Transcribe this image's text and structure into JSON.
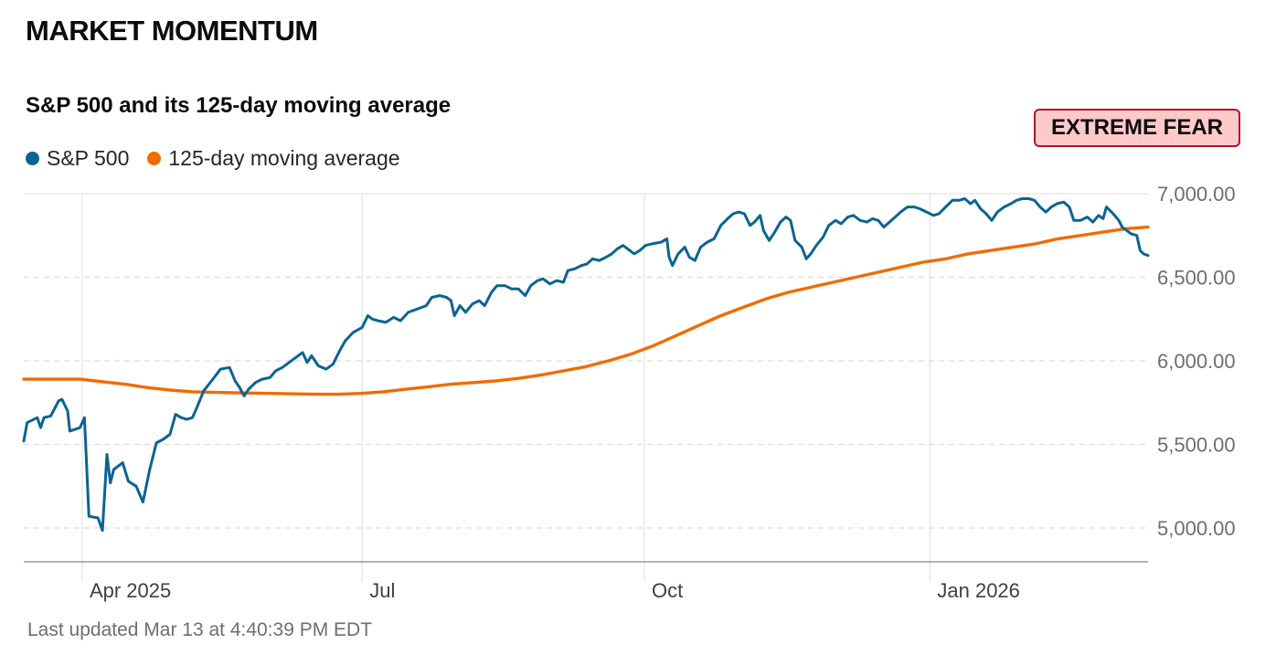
{
  "header": {
    "title": "MARKET MOMENTUM"
  },
  "chart_title": "S&P 500 and its 125-day moving average",
  "badge": {
    "label": "EXTREME FEAR",
    "bg": "#ffc9c9",
    "border": "#b5122a"
  },
  "legend": [
    {
      "label": "S&P 500",
      "color": "#0a6491"
    },
    {
      "label": "125-day moving average",
      "color": "#ef6c00"
    }
  ],
  "footer": {
    "text": "Last updated Mar 13 at 4:40:39 PM EDT"
  },
  "chart_data": {
    "type": "line",
    "title": "S&P 500 and its 125-day moving average",
    "x_range": [
      0,
      100
    ],
    "ylim": [
      4800,
      7000
    ],
    "yticks": [
      {
        "value": 5000,
        "label": "5,000.00"
      },
      {
        "value": 5500,
        "label": "5,500.00"
      },
      {
        "value": 6000,
        "label": "6,000.00"
      },
      {
        "value": 6500,
        "label": "6,500.00"
      },
      {
        "value": 7000,
        "label": "7,000.00"
      }
    ],
    "xticks": [
      {
        "value": 5.2,
        "label": "Apr 2025"
      },
      {
        "value": 30.1,
        "label": "Jul"
      },
      {
        "value": 55.2,
        "label": "Oct"
      },
      {
        "value": 80.6,
        "label": "Jan 2026"
      }
    ],
    "series": [
      {
        "name": "S&P 500",
        "color": "#0a6491",
        "points": [
          [
            0,
            5520
          ],
          [
            0.3,
            5630
          ],
          [
            1.2,
            5660
          ],
          [
            1.5,
            5600
          ],
          [
            1.8,
            5660
          ],
          [
            2.4,
            5670
          ],
          [
            3.1,
            5760
          ],
          [
            3.4,
            5770
          ],
          [
            3.9,
            5700
          ],
          [
            4.1,
            5580
          ],
          [
            5.0,
            5600
          ],
          [
            5.4,
            5660
          ],
          [
            5.8,
            5070
          ],
          [
            6.6,
            5060
          ],
          [
            7.0,
            4985
          ],
          [
            7.4,
            5440
          ],
          [
            7.7,
            5270
          ],
          [
            8.0,
            5350
          ],
          [
            8.8,
            5390
          ],
          [
            9.3,
            5280
          ],
          [
            10.0,
            5250
          ],
          [
            10.6,
            5155
          ],
          [
            11.2,
            5350
          ],
          [
            11.8,
            5510
          ],
          [
            12.4,
            5530
          ],
          [
            13.0,
            5560
          ],
          [
            13.5,
            5680
          ],
          [
            14.0,
            5660
          ],
          [
            14.5,
            5650
          ],
          [
            15.0,
            5660
          ],
          [
            15.4,
            5720
          ],
          [
            16.0,
            5820
          ],
          [
            16.7,
            5880
          ],
          [
            17.5,
            5950
          ],
          [
            18.3,
            5960
          ],
          [
            18.8,
            5880
          ],
          [
            19.2,
            5840
          ],
          [
            19.6,
            5790
          ],
          [
            20.0,
            5830
          ],
          [
            20.6,
            5870
          ],
          [
            21.2,
            5890
          ],
          [
            21.9,
            5900
          ],
          [
            22.4,
            5940
          ],
          [
            23.0,
            5960
          ],
          [
            23.6,
            5990
          ],
          [
            24.2,
            6020
          ],
          [
            24.8,
            6050
          ],
          [
            25.2,
            5990
          ],
          [
            25.6,
            6030
          ],
          [
            26.2,
            5970
          ],
          [
            26.9,
            5950
          ],
          [
            27.5,
            5980
          ],
          [
            28.1,
            6060
          ],
          [
            28.6,
            6120
          ],
          [
            29.3,
            6170
          ],
          [
            30.1,
            6200
          ],
          [
            30.6,
            6270
          ],
          [
            31.0,
            6250
          ],
          [
            31.5,
            6240
          ],
          [
            32.2,
            6230
          ],
          [
            32.9,
            6260
          ],
          [
            33.5,
            6240
          ],
          [
            34.2,
            6290
          ],
          [
            35.0,
            6310
          ],
          [
            35.8,
            6330
          ],
          [
            36.3,
            6380
          ],
          [
            37.0,
            6390
          ],
          [
            37.6,
            6380
          ],
          [
            38.0,
            6360
          ],
          [
            38.3,
            6270
          ],
          [
            38.8,
            6330
          ],
          [
            39.3,
            6290
          ],
          [
            39.9,
            6340
          ],
          [
            40.5,
            6360
          ],
          [
            41.0,
            6330
          ],
          [
            41.6,
            6410
          ],
          [
            42.1,
            6450
          ],
          [
            42.8,
            6450
          ],
          [
            43.4,
            6430
          ],
          [
            44.0,
            6430
          ],
          [
            44.6,
            6390
          ],
          [
            45.1,
            6450
          ],
          [
            45.7,
            6480
          ],
          [
            46.2,
            6490
          ],
          [
            46.8,
            6460
          ],
          [
            47.4,
            6480
          ],
          [
            48.0,
            6470
          ],
          [
            48.4,
            6540
          ],
          [
            49.0,
            6550
          ],
          [
            49.6,
            6570
          ],
          [
            50.1,
            6580
          ],
          [
            50.6,
            6610
          ],
          [
            51.2,
            6600
          ],
          [
            51.8,
            6620
          ],
          [
            52.3,
            6640
          ],
          [
            52.8,
            6670
          ],
          [
            53.3,
            6690
          ],
          [
            53.9,
            6660
          ],
          [
            54.3,
            6640
          ],
          [
            54.8,
            6660
          ],
          [
            55.3,
            6690
          ],
          [
            55.9,
            6700
          ],
          [
            56.7,
            6710
          ],
          [
            57.2,
            6730
          ],
          [
            57.4,
            6620
          ],
          [
            57.7,
            6570
          ],
          [
            58.2,
            6640
          ],
          [
            58.8,
            6680
          ],
          [
            59.2,
            6620
          ],
          [
            59.7,
            6600
          ],
          [
            60.2,
            6680
          ],
          [
            60.8,
            6710
          ],
          [
            61.4,
            6730
          ],
          [
            62.0,
            6810
          ],
          [
            62.6,
            6850
          ],
          [
            63.1,
            6880
          ],
          [
            63.6,
            6890
          ],
          [
            64.1,
            6880
          ],
          [
            64.6,
            6810
          ],
          [
            65.0,
            6830
          ],
          [
            65.5,
            6870
          ],
          [
            65.8,
            6780
          ],
          [
            66.3,
            6720
          ],
          [
            66.8,
            6770
          ],
          [
            67.3,
            6830
          ],
          [
            67.8,
            6860
          ],
          [
            68.2,
            6840
          ],
          [
            68.6,
            6720
          ],
          [
            69.2,
            6680
          ],
          [
            69.6,
            6610
          ],
          [
            70.0,
            6640
          ],
          [
            70.5,
            6690
          ],
          [
            71.1,
            6740
          ],
          [
            71.6,
            6810
          ],
          [
            72.2,
            6840
          ],
          [
            72.7,
            6820
          ],
          [
            73.3,
            6860
          ],
          [
            73.8,
            6870
          ],
          [
            74.4,
            6840
          ],
          [
            75.0,
            6830
          ],
          [
            75.5,
            6850
          ],
          [
            76.0,
            6840
          ],
          [
            76.5,
            6800
          ],
          [
            77.0,
            6830
          ],
          [
            77.5,
            6860
          ],
          [
            78.0,
            6890
          ],
          [
            78.6,
            6920
          ],
          [
            79.2,
            6920
          ],
          [
            79.7,
            6910
          ],
          [
            80.3,
            6890
          ],
          [
            80.9,
            6870
          ],
          [
            81.4,
            6880
          ],
          [
            82.0,
            6920
          ],
          [
            82.6,
            6960
          ],
          [
            83.2,
            6960
          ],
          [
            83.7,
            6970
          ],
          [
            84.2,
            6940
          ],
          [
            84.6,
            6960
          ],
          [
            85.1,
            6910
          ],
          [
            85.6,
            6880
          ],
          [
            86.1,
            6840
          ],
          [
            86.6,
            6890
          ],
          [
            87.2,
            6920
          ],
          [
            87.8,
            6940
          ],
          [
            88.3,
            6960
          ],
          [
            88.8,
            6970
          ],
          [
            89.4,
            6970
          ],
          [
            89.9,
            6960
          ],
          [
            90.4,
            6920
          ],
          [
            90.9,
            6890
          ],
          [
            91.4,
            6920
          ],
          [
            91.9,
            6940
          ],
          [
            92.5,
            6950
          ],
          [
            93.0,
            6920
          ],
          [
            93.4,
            6840
          ],
          [
            94.0,
            6840
          ],
          [
            94.6,
            6860
          ],
          [
            95.1,
            6830
          ],
          [
            95.6,
            6870
          ],
          [
            96.0,
            6850
          ],
          [
            96.3,
            6920
          ],
          [
            96.9,
            6880
          ],
          [
            97.4,
            6840
          ],
          [
            97.7,
            6800
          ],
          [
            98.1,
            6780
          ],
          [
            98.5,
            6760
          ],
          [
            99.0,
            6750
          ],
          [
            99.3,
            6660
          ],
          [
            99.6,
            6640
          ],
          [
            100.0,
            6630
          ]
        ]
      },
      {
        "name": "125-day moving average",
        "color": "#ef6c00",
        "points": [
          [
            0,
            5890
          ],
          [
            5.0,
            5890
          ],
          [
            7.0,
            5875
          ],
          [
            9.0,
            5860
          ],
          [
            11.0,
            5840
          ],
          [
            13.0,
            5825
          ],
          [
            15.0,
            5815
          ],
          [
            18.0,
            5810
          ],
          [
            22.0,
            5805
          ],
          [
            26.0,
            5800
          ],
          [
            28.0,
            5800
          ],
          [
            30.0,
            5805
          ],
          [
            32.0,
            5815
          ],
          [
            34.0,
            5830
          ],
          [
            36.0,
            5845
          ],
          [
            38.0,
            5860
          ],
          [
            40.0,
            5870
          ],
          [
            42.0,
            5880
          ],
          [
            44.0,
            5895
          ],
          [
            46.0,
            5915
          ],
          [
            48.0,
            5940
          ],
          [
            50.0,
            5965
          ],
          [
            52.0,
            6000
          ],
          [
            54.0,
            6040
          ],
          [
            56.0,
            6090
          ],
          [
            58.0,
            6150
          ],
          [
            60.0,
            6210
          ],
          [
            62.0,
            6270
          ],
          [
            64.0,
            6320
          ],
          [
            66.0,
            6370
          ],
          [
            68.0,
            6410
          ],
          [
            70.0,
            6440
          ],
          [
            72.0,
            6470
          ],
          [
            74.0,
            6500
          ],
          [
            76.0,
            6530
          ],
          [
            78.0,
            6560
          ],
          [
            80.0,
            6590
          ],
          [
            82.0,
            6610
          ],
          [
            84.0,
            6640
          ],
          [
            86.0,
            6660
          ],
          [
            88.0,
            6680
          ],
          [
            90.0,
            6700
          ],
          [
            92.0,
            6730
          ],
          [
            94.0,
            6750
          ],
          [
            96.0,
            6770
          ],
          [
            98.0,
            6790
          ],
          [
            100.0,
            6800
          ]
        ]
      }
    ]
  }
}
